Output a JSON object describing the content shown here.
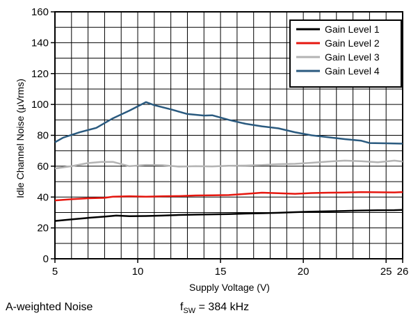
{
  "chart_data": {
    "type": "line",
    "xlabel": "Supply Voltage (V)",
    "ylabel": "Idle Channel Noise (µVrms)",
    "xlim": [
      5,
      26
    ],
    "ylim": [
      0,
      160
    ],
    "x_ticks": [
      5,
      10,
      15,
      20,
      25,
      26
    ],
    "y_ticks": [
      0,
      20,
      40,
      60,
      80,
      100,
      120,
      140,
      160
    ],
    "grid": true,
    "legend_position": "top-right",
    "series": [
      {
        "name": "Gain Level 1",
        "color": "#000000",
        "points": [
          [
            5,
            24.5
          ],
          [
            6,
            25.5
          ],
          [
            7,
            26.5
          ],
          [
            8,
            27.3
          ],
          [
            8.7,
            28
          ],
          [
            9.5,
            27.6
          ],
          [
            10.5,
            27.7
          ],
          [
            11.5,
            28
          ],
          [
            12.5,
            28.4
          ],
          [
            13.5,
            28.6
          ],
          [
            14.5,
            28.8
          ],
          [
            15.5,
            29
          ],
          [
            16.5,
            29.3
          ],
          [
            17.5,
            29.5
          ],
          [
            18.5,
            29.8
          ],
          [
            19.5,
            30.2
          ],
          [
            20.5,
            30.5
          ],
          [
            21.5,
            30.8
          ],
          [
            22.5,
            31
          ],
          [
            23.5,
            31.3
          ],
          [
            24.5,
            31.4
          ],
          [
            25.5,
            31.5
          ],
          [
            26,
            31.7
          ]
        ]
      },
      {
        "name": "Gain Level 2",
        "color": "#e6170f",
        "points": [
          [
            5,
            37.8
          ],
          [
            6,
            38.6
          ],
          [
            7,
            39.2
          ],
          [
            8,
            39.5
          ],
          [
            8.5,
            40.2
          ],
          [
            9.5,
            40.5
          ],
          [
            10.5,
            40.2
          ],
          [
            11.5,
            40.5
          ],
          [
            12.5,
            40.6
          ],
          [
            13.5,
            41
          ],
          [
            14.5,
            41.1
          ],
          [
            15.5,
            41.3
          ],
          [
            16.5,
            42
          ],
          [
            17.5,
            42.8
          ],
          [
            18.5,
            42.5
          ],
          [
            19.5,
            42.1
          ],
          [
            20.5,
            42.6
          ],
          [
            21.5,
            42.8
          ],
          [
            22.5,
            42.9
          ],
          [
            23.5,
            43.2
          ],
          [
            24.5,
            43.1
          ],
          [
            25.5,
            43
          ],
          [
            26,
            43.2
          ]
        ]
      },
      {
        "name": "Gain Level 3",
        "color": "#b3b3b3",
        "points": [
          [
            5,
            58.5
          ],
          [
            6,
            60
          ],
          [
            7,
            62
          ],
          [
            7.8,
            62.8
          ],
          [
            8.5,
            62.8
          ],
          [
            9.5,
            60
          ],
          [
            10.5,
            60.8
          ],
          [
            11.5,
            60.6
          ],
          [
            12.5,
            59.7
          ],
          [
            13.5,
            60
          ],
          [
            14.5,
            59.8
          ],
          [
            15.5,
            60.3
          ],
          [
            16.5,
            60.4
          ],
          [
            17.5,
            60.7
          ],
          [
            18.5,
            61.3
          ],
          [
            19.5,
            61.5
          ],
          [
            20.5,
            62.2
          ],
          [
            21.5,
            63
          ],
          [
            22.5,
            63.6
          ],
          [
            23.5,
            63.2
          ],
          [
            24.5,
            62.5
          ],
          [
            25.5,
            63.6
          ],
          [
            26,
            63
          ]
        ]
      },
      {
        "name": "Gain Level 4",
        "color": "#2a5a7f",
        "points": [
          [
            5,
            75.5
          ],
          [
            5.5,
            78.5
          ],
          [
            6.5,
            82
          ],
          [
            7.5,
            84.8
          ],
          [
            8.5,
            91
          ],
          [
            9.5,
            96
          ],
          [
            10.5,
            101.5
          ],
          [
            11,
            99.5
          ],
          [
            12,
            96.8
          ],
          [
            13,
            93.8
          ],
          [
            14,
            92.8
          ],
          [
            14.5,
            93
          ],
          [
            15.5,
            90
          ],
          [
            16.5,
            87.5
          ],
          [
            17.5,
            85.8
          ],
          [
            18.5,
            84.5
          ],
          [
            19.5,
            82
          ],
          [
            20.5,
            80
          ],
          [
            21.5,
            78.8
          ],
          [
            22.5,
            77.5
          ],
          [
            23.5,
            76.5
          ],
          [
            24,
            75
          ],
          [
            25,
            74.8
          ],
          [
            26,
            74.6
          ]
        ]
      }
    ]
  },
  "notes": {
    "left": "A-weighted Noise",
    "freq_prefix": "f",
    "freq_sub": "SW",
    "freq_value": " = 384 kHz"
  }
}
